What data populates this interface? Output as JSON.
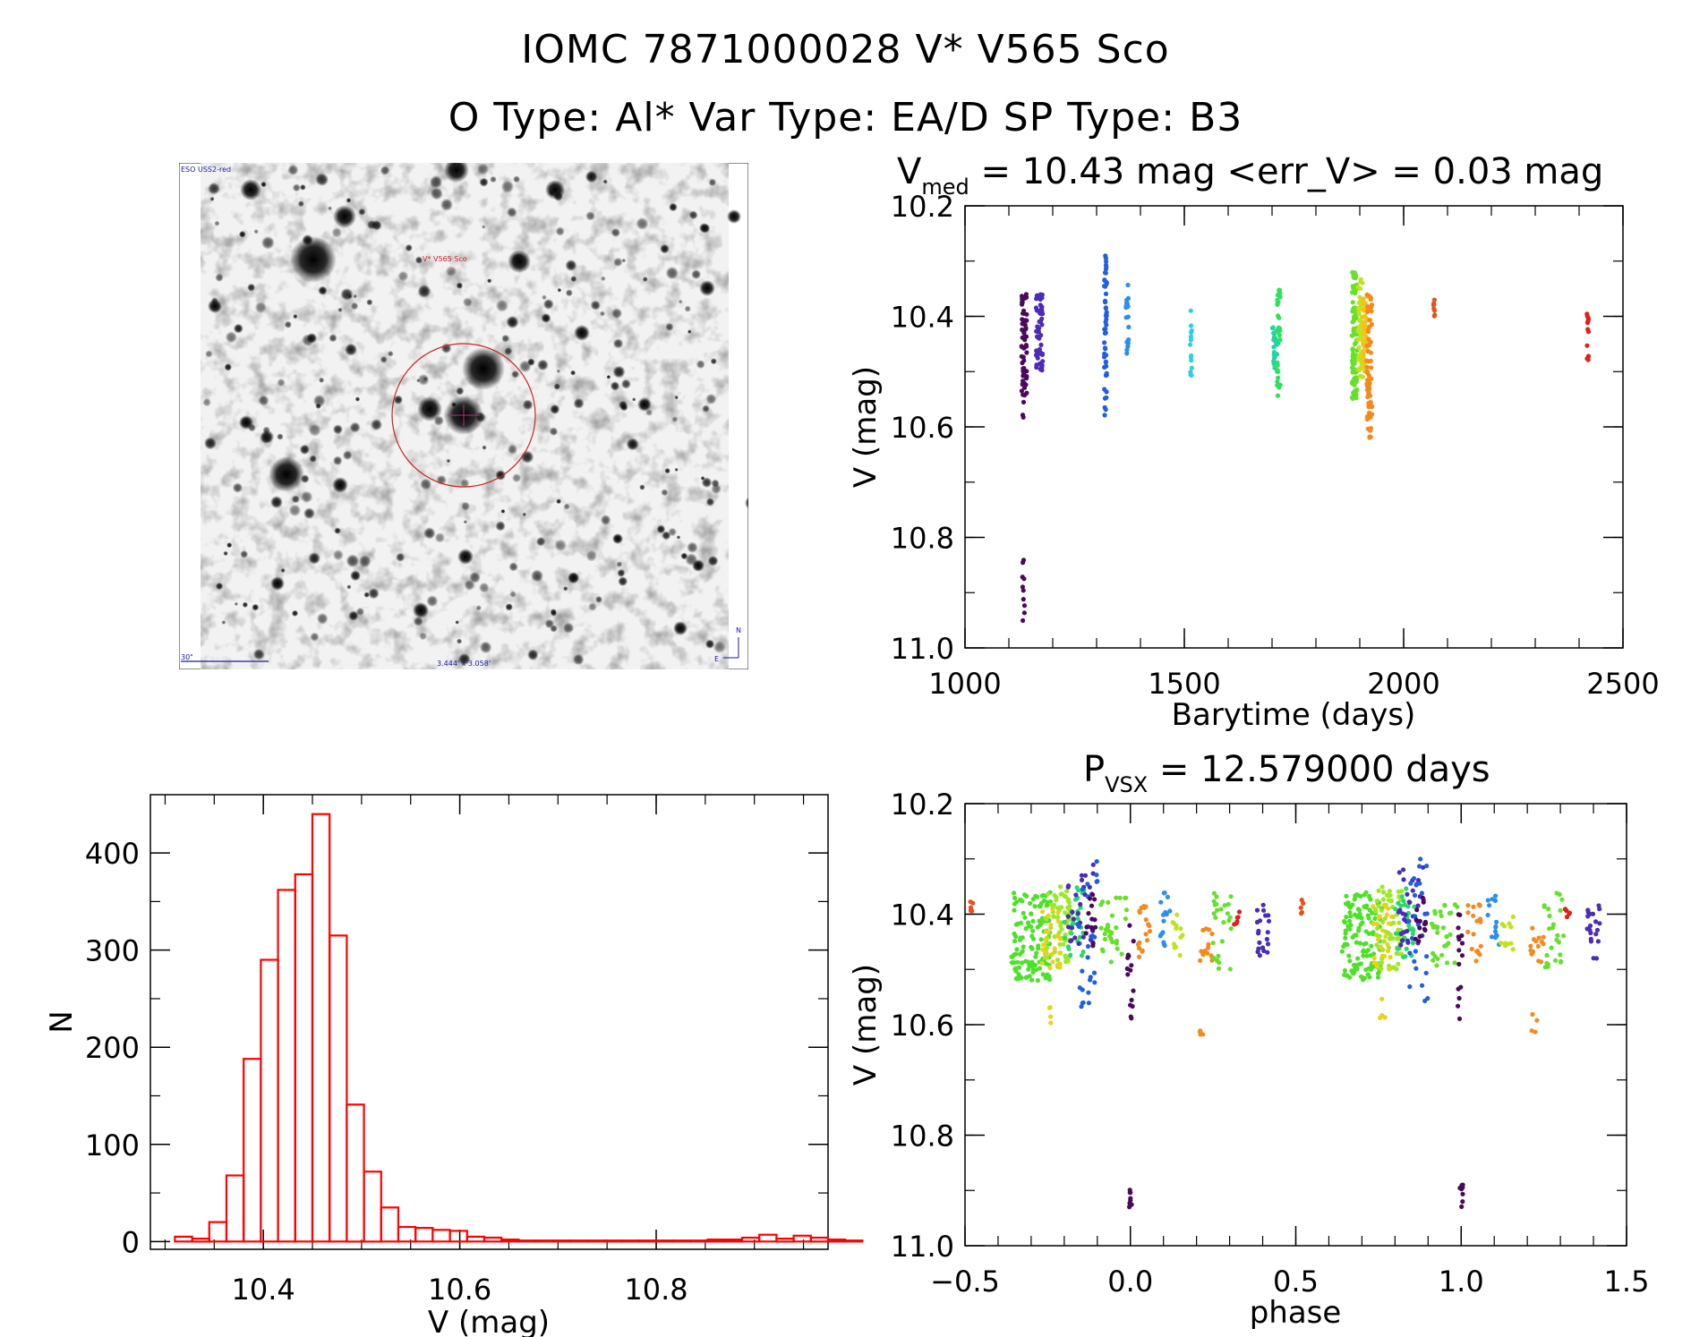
{
  "header": {
    "line1": "IOMC 7871000028   V* V565 Sco",
    "line2": "O Type: Al*  Var Type: EA/D  SP Type: B3"
  },
  "image_panel": {
    "survey_label": "ESO USS2-red",
    "target_label": "V* V565 Sco",
    "scale_label": "30\"",
    "size_label": "3.444' x 3.058'",
    "north_label": "N",
    "east_label": "E",
    "reticle_color": "#cc2222",
    "overlay_color": "#1a1aa0"
  },
  "chart_data": [
    {
      "id": "lightcurve",
      "type": "scatter",
      "title_main": "V",
      "title_sub": "med",
      "title_rest": " = 10.43 mag <err_V> = 0.03 mag",
      "xlabel": "Barytime (days)",
      "ylabel": "V (mag)",
      "xlim": [
        1000,
        2500
      ],
      "ylim": [
        10.2,
        11.0
      ],
      "y_inverted": true,
      "xticks": [
        1000,
        1500,
        2000,
        2500
      ],
      "yticks": [
        "10.2",
        "10.4",
        "10.6",
        "10.8",
        "11.0"
      ],
      "clusters": [
        {
          "x": 1135,
          "x_spread": 6,
          "y_lo": 10.35,
          "y_hi": 10.55,
          "n": 60,
          "color": "#4a0a5a"
        },
        {
          "x": 1133,
          "x_spread": 3,
          "y_lo": 10.84,
          "y_hi": 10.96,
          "n": 10,
          "color": "#4a0a5a"
        },
        {
          "x": 1133,
          "x_spread": 2,
          "y_lo": 10.55,
          "y_hi": 10.6,
          "n": 3,
          "color": "#4a0a5a"
        },
        {
          "x": 1170,
          "x_spread": 8,
          "y_lo": 10.36,
          "y_hi": 10.5,
          "n": 55,
          "color": "#4b2bb8"
        },
        {
          "x": 1320,
          "x_spread": 3,
          "y_lo": 10.29,
          "y_hi": 10.58,
          "n": 50,
          "color": "#1f5fe0"
        },
        {
          "x": 1370,
          "x_spread": 3,
          "y_lo": 10.34,
          "y_hi": 10.48,
          "n": 20,
          "color": "#2a8fef"
        },
        {
          "x": 1515,
          "x_spread": 2,
          "y_lo": 10.38,
          "y_hi": 10.52,
          "n": 15,
          "color": "#2ad0e8"
        },
        {
          "x": 1708,
          "x_spread": 7,
          "y_lo": 10.42,
          "y_hi": 10.5,
          "n": 30,
          "color": "#23d5a0"
        },
        {
          "x": 1715,
          "x_spread": 4,
          "y_lo": 10.35,
          "y_hi": 10.55,
          "n": 30,
          "color": "#2de25a"
        },
        {
          "x": 1888,
          "x_spread": 6,
          "y_lo": 10.32,
          "y_hi": 10.55,
          "n": 90,
          "color": "#66e02a"
        },
        {
          "x": 1902,
          "x_spread": 6,
          "y_lo": 10.33,
          "y_hi": 10.52,
          "n": 60,
          "color": "#c2e21f"
        },
        {
          "x": 1912,
          "x_spread": 5,
          "y_lo": 10.35,
          "y_hi": 10.5,
          "n": 50,
          "color": "#f0c41c"
        },
        {
          "x": 1922,
          "x_spread": 6,
          "y_lo": 10.36,
          "y_hi": 10.62,
          "n": 70,
          "color": "#f58a1c"
        },
        {
          "x": 2070,
          "x_spread": 2,
          "y_lo": 10.37,
          "y_hi": 10.4,
          "n": 8,
          "color": "#e8501a"
        },
        {
          "x": 2420,
          "x_spread": 2,
          "y_lo": 10.39,
          "y_hi": 10.48,
          "n": 14,
          "color": "#e0201a"
        }
      ]
    },
    {
      "id": "histogram",
      "type": "bar",
      "xlabel": "V (mag)",
      "ylabel": "N",
      "xlim": [
        10.285,
        10.975
      ],
      "ylim": [
        -8,
        460
      ],
      "xticks": [
        "10.4",
        "10.6",
        "10.8"
      ],
      "xtick_values": [
        10.4,
        10.6,
        10.8
      ],
      "yticks": [
        0,
        100,
        200,
        300,
        400
      ],
      "bin_width": 0.0175,
      "bin_start": 10.2925,
      "values": [
        0,
        5,
        3,
        20,
        68,
        188,
        290,
        362,
        378,
        440,
        315,
        141,
        72,
        35,
        15,
        14,
        12,
        11,
        5,
        4,
        2,
        1,
        1,
        1,
        1,
        1,
        1,
        1,
        1,
        1,
        1,
        1,
        2,
        2,
        4,
        7,
        3,
        6,
        4,
        2,
        1
      ],
      "bar_color": "#ff0000"
    },
    {
      "id": "phased",
      "type": "scatter",
      "title_main": "P",
      "title_sub": "VSX",
      "title_rest": " = 12.579000 days",
      "xlabel": "phase",
      "ylabel": "V (mag)",
      "xlim": [
        -0.5,
        1.5
      ],
      "ylim": [
        10.2,
        11.0
      ],
      "y_inverted": true,
      "xticks": [
        "−0.5",
        "0.0",
        "0.5",
        "1.0",
        "1.5"
      ],
      "xtick_values": [
        -0.5,
        0.0,
        0.5,
        1.0,
        1.5
      ],
      "yticks": [
        "10.2",
        "10.4",
        "10.6",
        "10.8",
        "11.0"
      ],
      "clusters": [
        {
          "x": -0.3,
          "x_spread": 0.06,
          "y_lo": 10.36,
          "y_hi": 10.52,
          "n": 120,
          "color": "#4ee02a"
        },
        {
          "x": -0.22,
          "x_spread": 0.04,
          "y_lo": 10.35,
          "y_hi": 10.5,
          "n": 70,
          "color": "#9ce82a"
        },
        {
          "x": -0.24,
          "x_spread": 0.03,
          "y_lo": 10.38,
          "y_hi": 10.5,
          "n": 25,
          "color": "#e8d21c"
        },
        {
          "x": -0.24,
          "x_spread": 0.01,
          "y_lo": 10.55,
          "y_hi": 10.62,
          "n": 4,
          "color": "#e8d21c"
        },
        {
          "x": -0.17,
          "x_spread": 0.03,
          "y_lo": 10.35,
          "y_hi": 10.48,
          "n": 30,
          "color": "#2ad86a"
        },
        {
          "x": -0.15,
          "x_spread": 0.04,
          "y_lo": 10.31,
          "y_hi": 10.46,
          "n": 30,
          "color": "#4b2bb8"
        },
        {
          "x": -0.13,
          "x_spread": 0.03,
          "y_lo": 10.3,
          "y_hi": 10.57,
          "n": 25,
          "color": "#1f5fe0"
        },
        {
          "x": -0.12,
          "x_spread": 0.02,
          "y_lo": 10.36,
          "y_hi": 10.46,
          "n": 15,
          "color": "#4a0a5a"
        },
        {
          "x": -0.05,
          "x_spread": 0.04,
          "y_lo": 10.37,
          "y_hi": 10.5,
          "n": 30,
          "color": "#66e02a"
        },
        {
          "x": 0.0,
          "x_spread": 0.01,
          "y_lo": 10.4,
          "y_hi": 10.59,
          "n": 15,
          "color": "#4a0a5a"
        },
        {
          "x": 0.0,
          "x_spread": 0.005,
          "y_lo": 10.88,
          "y_hi": 10.93,
          "n": 8,
          "color": "#4a0a5a"
        },
        {
          "x": 0.04,
          "x_spread": 0.02,
          "y_lo": 10.38,
          "y_hi": 10.49,
          "n": 18,
          "color": "#f58a1c"
        },
        {
          "x": 0.1,
          "x_spread": 0.02,
          "y_lo": 10.36,
          "y_hi": 10.46,
          "n": 15,
          "color": "#2a8fef"
        },
        {
          "x": 0.14,
          "x_spread": 0.02,
          "y_lo": 10.4,
          "y_hi": 10.48,
          "n": 12,
          "color": "#c2e21f"
        },
        {
          "x": 0.23,
          "x_spread": 0.02,
          "y_lo": 10.42,
          "y_hi": 10.49,
          "n": 15,
          "color": "#f58a1c"
        },
        {
          "x": 0.22,
          "x_spread": 0.01,
          "y_lo": 10.58,
          "y_hi": 10.62,
          "n": 4,
          "color": "#f58a1c"
        },
        {
          "x": 0.28,
          "x_spread": 0.03,
          "y_lo": 10.36,
          "y_hi": 10.5,
          "n": 25,
          "color": "#66e02a"
        },
        {
          "x": 0.32,
          "x_spread": 0.01,
          "y_lo": 10.39,
          "y_hi": 10.42,
          "n": 6,
          "color": "#e0201a"
        },
        {
          "x": 0.4,
          "x_spread": 0.02,
          "y_lo": 10.38,
          "y_hi": 10.48,
          "n": 20,
          "color": "#4b2bb8"
        },
        {
          "x": 0.52,
          "x_spread": 0.005,
          "y_lo": 10.37,
          "y_hi": 10.4,
          "n": 5,
          "color": "#e8501a"
        },
        {
          "x": -0.48,
          "x_spread": 0.005,
          "y_lo": 10.37,
          "y_hi": 10.4,
          "n": 5,
          "color": "#e8501a"
        },
        {
          "x": 0.7,
          "x_spread": 0.06,
          "y_lo": 10.36,
          "y_hi": 10.52,
          "n": 120,
          "color": "#4ee02a"
        },
        {
          "x": 0.78,
          "x_spread": 0.04,
          "y_lo": 10.35,
          "y_hi": 10.5,
          "n": 70,
          "color": "#9ce82a"
        },
        {
          "x": 0.76,
          "x_spread": 0.03,
          "y_lo": 10.38,
          "y_hi": 10.5,
          "n": 25,
          "color": "#e8d21c"
        },
        {
          "x": 0.76,
          "x_spread": 0.01,
          "y_lo": 10.55,
          "y_hi": 10.62,
          "n": 4,
          "color": "#e8d21c"
        },
        {
          "x": 0.83,
          "x_spread": 0.03,
          "y_lo": 10.35,
          "y_hi": 10.48,
          "n": 30,
          "color": "#2ad86a"
        },
        {
          "x": 0.85,
          "x_spread": 0.04,
          "y_lo": 10.31,
          "y_hi": 10.46,
          "n": 30,
          "color": "#4b2bb8"
        },
        {
          "x": 0.87,
          "x_spread": 0.03,
          "y_lo": 10.3,
          "y_hi": 10.57,
          "n": 25,
          "color": "#1f5fe0"
        },
        {
          "x": 0.88,
          "x_spread": 0.02,
          "y_lo": 10.36,
          "y_hi": 10.46,
          "n": 15,
          "color": "#4a0a5a"
        },
        {
          "x": 0.95,
          "x_spread": 0.04,
          "y_lo": 10.37,
          "y_hi": 10.5,
          "n": 30,
          "color": "#66e02a"
        },
        {
          "x": 1.0,
          "x_spread": 0.01,
          "y_lo": 10.4,
          "y_hi": 10.59,
          "n": 15,
          "color": "#4a0a5a"
        },
        {
          "x": 1.0,
          "x_spread": 0.005,
          "y_lo": 10.88,
          "y_hi": 10.93,
          "n": 8,
          "color": "#4a0a5a"
        },
        {
          "x": 1.04,
          "x_spread": 0.02,
          "y_lo": 10.38,
          "y_hi": 10.49,
          "n": 18,
          "color": "#f58a1c"
        },
        {
          "x": 1.1,
          "x_spread": 0.02,
          "y_lo": 10.36,
          "y_hi": 10.46,
          "n": 15,
          "color": "#2a8fef"
        },
        {
          "x": 1.14,
          "x_spread": 0.02,
          "y_lo": 10.4,
          "y_hi": 10.48,
          "n": 12,
          "color": "#c2e21f"
        },
        {
          "x": 1.23,
          "x_spread": 0.02,
          "y_lo": 10.42,
          "y_hi": 10.49,
          "n": 15,
          "color": "#f58a1c"
        },
        {
          "x": 1.22,
          "x_spread": 0.01,
          "y_lo": 10.58,
          "y_hi": 10.62,
          "n": 4,
          "color": "#f58a1c"
        },
        {
          "x": 1.28,
          "x_spread": 0.03,
          "y_lo": 10.36,
          "y_hi": 10.5,
          "n": 25,
          "color": "#66e02a"
        },
        {
          "x": 1.32,
          "x_spread": 0.01,
          "y_lo": 10.39,
          "y_hi": 10.42,
          "n": 6,
          "color": "#e0201a"
        },
        {
          "x": 1.4,
          "x_spread": 0.02,
          "y_lo": 10.38,
          "y_hi": 10.48,
          "n": 20,
          "color": "#4b2bb8"
        }
      ]
    }
  ]
}
